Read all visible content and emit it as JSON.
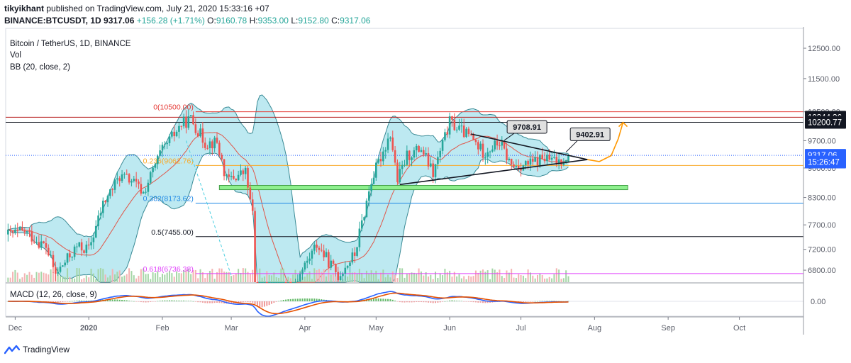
{
  "header": {
    "user": "tikyikhant",
    "published": "published on TradingView.com, July 21, 2020 15:33:16 +07",
    "symbol_line": "BINANCE:BTCUSDT, 1D",
    "last": "9317.06",
    "change": "+156.28 (+1.71%)",
    "o_label": "O:",
    "o": "9160.78",
    "h_label": "H:",
    "h": "9353.00",
    "l_label": "L:",
    "l": "9152.80",
    "c_label": "C:",
    "c": "9317.06"
  },
  "legend": {
    "title": "Bitcoin / TetherUS, 1D, BINANCE",
    "vol": "Vol",
    "bb": "BB (20, close, 2)",
    "macd": "MACD (12, 26, close, 9)"
  },
  "footer": {
    "brand": "TradingView"
  },
  "colors": {
    "up": "#26a69a",
    "down": "#ef5350",
    "bb_fill": "#b2e5ef",
    "bb_line": "#3a8a95",
    "basis": "#e0574a",
    "macd": "#2962ff",
    "signal": "#e65100",
    "accent": "#ff9800"
  },
  "chart_data": {
    "type": "candlestick",
    "symbol": "BINANCE:BTCUSDT",
    "timeframe": "1D",
    "x_axis": {
      "type": "date",
      "range": [
        "2019-11-27",
        "2020-10-28"
      ],
      "ticks": [
        {
          "date": "2019-12-01",
          "label": "Dec"
        },
        {
          "date": "2020-01-01",
          "label": "2020"
        },
        {
          "date": "2020-02-01",
          "label": "Feb"
        },
        {
          "date": "2020-03-01",
          "label": "Mar"
        },
        {
          "date": "2020-04-01",
          "label": "Apr"
        },
        {
          "date": "2020-05-01",
          "label": "May"
        },
        {
          "date": "2020-06-01",
          "label": "Jun"
        },
        {
          "date": "2020-07-01",
          "label": "Jul"
        },
        {
          "date": "2020-08-01",
          "label": "Aug"
        },
        {
          "date": "2020-09-01",
          "label": "Sep"
        },
        {
          "date": "2020-10-01",
          "label": "Oct"
        }
      ]
    },
    "y_axis": {
      "scale": "log",
      "range": [
        6580,
        13200
      ],
      "ticks": [
        "12500.00",
        "11500.00",
        "10500.00",
        "9700.00",
        "9000.00",
        "8300.00",
        "7700.00",
        "7200.00",
        "6800.00"
      ]
    },
    "price_tags": [
      {
        "value": 10344.36,
        "label": "10344.36",
        "style": "dark"
      },
      {
        "value": 10200.77,
        "label": "10200.77",
        "style": "dark"
      },
      {
        "value": 9317.06,
        "label": "9317.06",
        "style": "blue"
      },
      {
        "value": 9150,
        "label": "15:26:47",
        "style": "blue"
      }
    ],
    "horizontal_lines": [
      {
        "value": 10344.36,
        "color": "#b71c1c"
      },
      {
        "value": 10200.77,
        "color": "#131722"
      }
    ],
    "fibonacci": [
      {
        "label": "0(10500.00)",
        "value": 10500,
        "color": "#e53935"
      },
      {
        "label": "0.236(9062.76)",
        "value": 9062.76,
        "color": "#f9a825"
      },
      {
        "label": "0.382(8173.62)",
        "value": 8173.62,
        "color": "#1e88e5"
      },
      {
        "label": "0.5(7455.00)",
        "value": 7455,
        "color": "#131722"
      },
      {
        "label": "0.618(6736.38)",
        "value": 6736.38,
        "color": "#e040fb"
      }
    ],
    "support_zone": {
      "from": "2020-02-25",
      "to": "2020-08-15",
      "low": 8480,
      "high": 8580,
      "color": "#8ef08e"
    },
    "triangle": {
      "upper": [
        {
          "date": "2020-06-10",
          "price": 9880
        },
        {
          "date": "2020-07-29",
          "price": 9210
        }
      ],
      "lower": [
        {
          "date": "2020-05-11",
          "price": 8600
        },
        {
          "date": "2020-07-29",
          "price": 9210
        }
      ]
    },
    "callouts": [
      {
        "label": "9708.91",
        "date": "2020-06-24",
        "price": 9708.91
      },
      {
        "label": "9402.91",
        "date": "2020-07-20",
        "price": 9402.91
      }
    ],
    "projection": {
      "color": "#ff9800",
      "points": [
        {
          "date": "2020-07-29",
          "price": 9210
        },
        {
          "date": "2020-08-03",
          "price": 9160
        },
        {
          "date": "2020-08-08",
          "price": 9310
        },
        {
          "date": "2020-08-11",
          "price": 9750
        },
        {
          "date": "2020-08-13",
          "price": 10200
        }
      ]
    },
    "ohlc_keypoints": [
      {
        "date": "2019-11-28",
        "close": 7500
      },
      {
        "date": "2019-12-05",
        "close": 7560
      },
      {
        "date": "2019-12-14",
        "close": 7250
      },
      {
        "date": "2019-12-18",
        "close": 6720
      },
      {
        "date": "2019-12-27",
        "close": 7250
      },
      {
        "date": "2020-01-01",
        "close": 7200
      },
      {
        "date": "2020-01-07",
        "close": 8150
      },
      {
        "date": "2020-01-14",
        "close": 8800
      },
      {
        "date": "2020-01-19",
        "close": 8700
      },
      {
        "date": "2020-01-24",
        "close": 8400
      },
      {
        "date": "2020-01-31",
        "close": 9350
      },
      {
        "date": "2020-02-09",
        "close": 10150
      },
      {
        "date": "2020-02-13",
        "close": 10300
      },
      {
        "date": "2020-02-19",
        "close": 9650
      },
      {
        "date": "2020-02-24",
        "close": 9650
      },
      {
        "date": "2020-02-28",
        "close": 8700
      },
      {
        "date": "2020-03-07",
        "close": 8900
      },
      {
        "date": "2020-03-10",
        "close": 7900
      },
      {
        "date": "2020-03-12",
        "close": 5000
      },
      {
        "date": "2020-03-20",
        "close": 6200
      },
      {
        "date": "2020-03-27",
        "close": 6500
      },
      {
        "date": "2020-04-06",
        "close": 7300
      },
      {
        "date": "2020-04-15",
        "close": 6700
      },
      {
        "date": "2020-04-22",
        "close": 7100
      },
      {
        "date": "2020-04-29",
        "close": 8700
      },
      {
        "date": "2020-05-07",
        "close": 9900
      },
      {
        "date": "2020-05-10",
        "close": 8700
      },
      {
        "date": "2020-05-14",
        "close": 9300
      },
      {
        "date": "2020-05-20",
        "close": 9500
      },
      {
        "date": "2020-05-25",
        "close": 8850
      },
      {
        "date": "2020-06-01",
        "close": 10200
      },
      {
        "date": "2020-06-10",
        "close": 9780
      },
      {
        "date": "2020-06-15",
        "close": 9400
      },
      {
        "date": "2020-06-22",
        "close": 9650
      },
      {
        "date": "2020-06-27",
        "close": 9050
      },
      {
        "date": "2020-07-05",
        "close": 9100
      },
      {
        "date": "2020-07-10",
        "close": 9250
      },
      {
        "date": "2020-07-16",
        "close": 9150
      },
      {
        "date": "2020-07-21",
        "close": 9317.06
      }
    ],
    "macd": {
      "y_ticks": [
        "0.00"
      ],
      "range": [
        -1000,
        1000
      ]
    }
  }
}
